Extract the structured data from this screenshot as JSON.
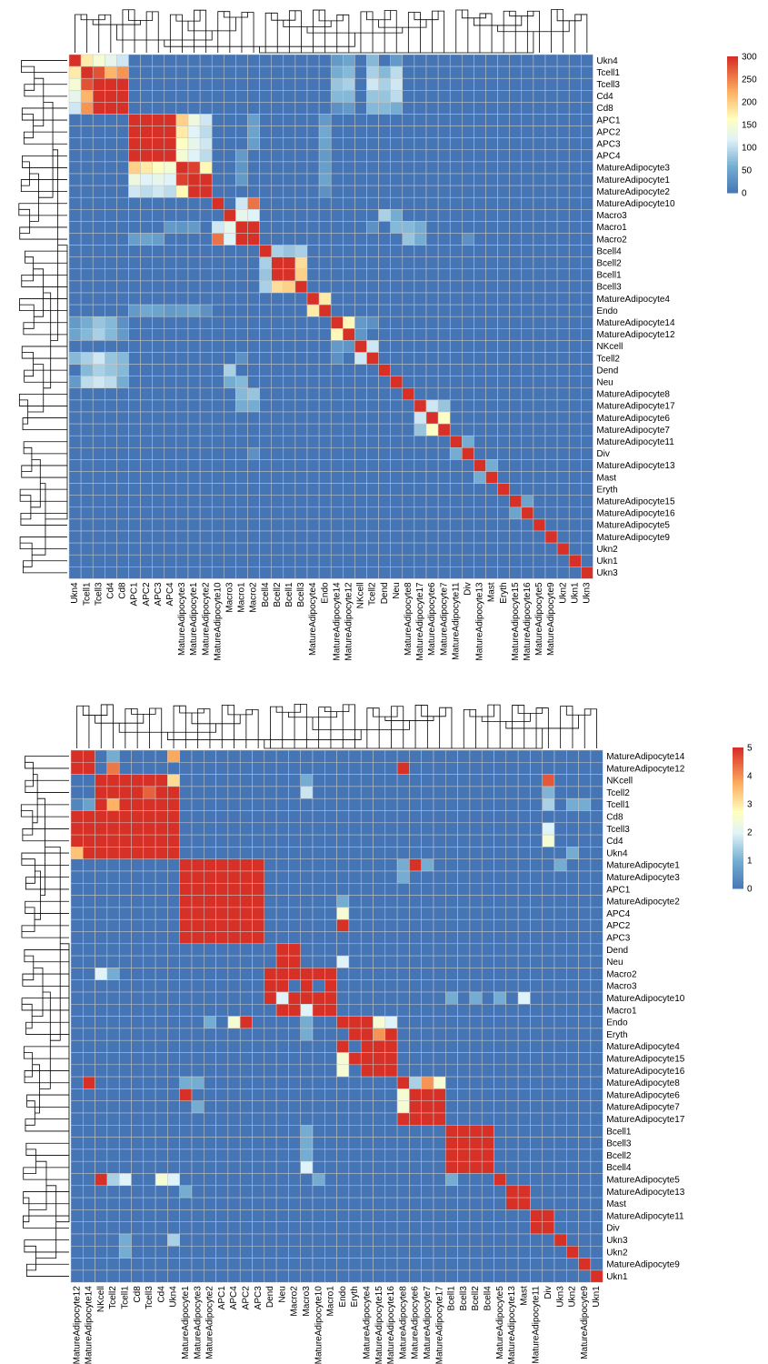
{
  "chart_data": [
    {
      "type": "heatmap",
      "title": "",
      "rows": [
        "Ukn4",
        "Tcell1",
        "Tcell3",
        "Cd4",
        "Cd8",
        "APC1",
        "APC2",
        "APC3",
        "APC4",
        "MatureAdipocyte3",
        "MatureAdipocyte1",
        "MatureAdipocyte2",
        "MatureAdipocyte10",
        "Macro3",
        "Macro1",
        "Macro2",
        "Bcell4",
        "Bcell2",
        "Bcell1",
        "Bcell3",
        "MatureAdipocyte4",
        "Endo",
        "MatureAdipocyte14",
        "MatureAdipocyte12",
        "NKcell",
        "Tcell2",
        "Dend",
        "Neu",
        "MatureAdipocyte8",
        "MatureAdipocyte17",
        "MatureAdipocyte6",
        "MatureAdipocyte7",
        "MatureAdipocyte11",
        "Div",
        "MatureAdipocyte13",
        "Mast",
        "Eryth",
        "MatureAdipocyte15",
        "MatureAdipocyte16",
        "MatureAdipocyte5",
        "MatureAdipocyte9",
        "Ukn2",
        "Ukn1",
        "Ukn3"
      ],
      "columns": [
        "Ukn4",
        "Tcell1",
        "Tcell3",
        "Cd4",
        "Cd8",
        "APC1",
        "APC2",
        "APC3",
        "APC4",
        "MatureAdipocyte3",
        "MatureAdipocyte1",
        "MatureAdipocyte2",
        "MatureAdipocyte10",
        "Macro3",
        "Macro1",
        "Macro2",
        "Bcell4",
        "Bcell2",
        "Bcell1",
        "Bcell3",
        "MatureAdipocyte4",
        "Endo",
        "MatureAdipocyte14",
        "MatureAdipocyte12",
        "NKcell",
        "Tcell2",
        "Dend",
        "Neu",
        "MatureAdipocyte8",
        "MatureAdipocyte17",
        "MatureAdipocyte6",
        "MatureAdipocyte7",
        "MatureAdipocyte11",
        "Div",
        "MatureAdipocyte13",
        "Mast",
        "Eryth",
        "MatureAdipocyte15",
        "MatureAdipocyte16",
        "MatureAdipocyte5",
        "MatureAdipocyte9",
        "Ukn2",
        "Ukn1",
        "Ukn3"
      ],
      "diagonal": 300,
      "off_diagonal": [
        [
          0,
          1,
          180
        ],
        [
          0,
          2,
          150
        ],
        [
          0,
          3,
          130
        ],
        [
          0,
          4,
          110
        ],
        [
          1,
          2,
          280
        ],
        [
          1,
          3,
          220
        ],
        [
          1,
          4,
          240
        ],
        [
          2,
          3,
          300
        ],
        [
          2,
          4,
          300
        ],
        [
          3,
          4,
          300
        ],
        [
          0,
          25,
          70
        ],
        [
          0,
          27,
          40
        ],
        [
          1,
          25,
          90
        ],
        [
          1,
          26,
          70
        ],
        [
          1,
          27,
          100
        ],
        [
          2,
          25,
          110
        ],
        [
          2,
          26,
          90
        ],
        [
          2,
          27,
          110
        ],
        [
          3,
          25,
          80
        ],
        [
          3,
          26,
          80
        ],
        [
          3,
          27,
          100
        ],
        [
          4,
          25,
          70
        ],
        [
          4,
          26,
          70
        ],
        [
          4,
          27,
          60
        ],
        [
          5,
          6,
          300
        ],
        [
          5,
          7,
          300
        ],
        [
          5,
          8,
          300
        ],
        [
          6,
          7,
          300
        ],
        [
          6,
          8,
          300
        ],
        [
          7,
          8,
          300
        ],
        [
          5,
          9,
          200
        ],
        [
          5,
          10,
          140
        ],
        [
          5,
          11,
          110
        ],
        [
          6,
          9,
          180
        ],
        [
          6,
          10,
          120
        ],
        [
          6,
          11,
          100
        ],
        [
          7,
          9,
          160
        ],
        [
          7,
          10,
          130
        ],
        [
          7,
          11,
          110
        ],
        [
          8,
          9,
          150
        ],
        [
          8,
          10,
          120
        ],
        [
          8,
          11,
          100
        ],
        [
          9,
          10,
          290
        ],
        [
          9,
          11,
          170
        ],
        [
          10,
          11,
          300
        ],
        [
          5,
          15,
          45
        ],
        [
          6,
          15,
          50
        ],
        [
          7,
          15,
          45
        ],
        [
          5,
          21,
          40
        ],
        [
          6,
          21,
          55
        ],
        [
          7,
          21,
          50
        ],
        [
          13,
          14,
          130
        ],
        [
          13,
          15,
          120
        ],
        [
          14,
          15,
          300
        ],
        [
          12,
          14,
          110
        ],
        [
          12,
          15,
          260
        ],
        [
          8,
          14,
          40
        ],
        [
          9,
          14,
          35
        ],
        [
          10,
          14,
          40
        ],
        [
          14,
          25,
          30
        ],
        [
          14,
          28,
          70
        ],
        [
          14,
          29,
          60
        ],
        [
          15,
          28,
          80
        ],
        [
          15,
          29,
          60
        ],
        [
          15,
          33,
          30
        ],
        [
          16,
          17,
          90
        ],
        [
          16,
          18,
          80
        ],
        [
          16,
          19,
          90
        ],
        [
          17,
          18,
          300
        ],
        [
          17,
          19,
          190
        ],
        [
          18,
          19,
          200
        ],
        [
          20,
          21,
          180
        ],
        [
          8,
          21,
          40
        ],
        [
          9,
          21,
          45
        ],
        [
          10,
          21,
          50
        ],
        [
          11,
          21,
          30
        ],
        [
          22,
          23,
          170
        ],
        [
          22,
          24,
          40
        ],
        [
          22,
          25,
          30
        ],
        [
          23,
          24,
          35
        ],
        [
          24,
          25,
          110
        ],
        [
          0,
          22,
          40
        ],
        [
          0,
          23,
          50
        ],
        [
          1,
          22,
          60
        ],
        [
          1,
          23,
          70
        ],
        [
          2,
          22,
          80
        ],
        [
          2,
          23,
          90
        ],
        [
          3,
          22,
          70
        ],
        [
          3,
          23,
          70
        ],
        [
          4,
          22,
          30
        ],
        [
          4,
          23,
          40
        ],
        [
          13,
          26,
          90
        ],
        [
          13,
          27,
          60
        ],
        [
          14,
          27,
          70
        ],
        [
          29,
          30,
          110
        ],
        [
          29,
          31,
          80
        ],
        [
          30,
          31,
          160
        ],
        [
          32,
          33,
          60
        ],
        [
          34,
          35,
          60
        ],
        [
          37,
          38,
          50
        ]
      ],
      "colorbar": {
        "min": 0,
        "max": 300,
        "ticks": [
          0,
          50,
          100,
          150,
          200,
          250,
          300
        ]
      }
    },
    {
      "type": "heatmap",
      "title": "",
      "rows": [
        "MatureAdipocyte14",
        "MatureAdipocyte12",
        "NKcell",
        "Tcell2",
        "Tcell1",
        "Cd8",
        "Tcell3",
        "Cd4",
        "Ukn4",
        "MatureAdipocyte1",
        "MatureAdipocyte3",
        "APC1",
        "MatureAdipocyte2",
        "APC4",
        "APC2",
        "APC3",
        "Dend",
        "Neu",
        "Macro2",
        "Macro3",
        "MatureAdipocyte10",
        "Macro1",
        "Endo",
        "Eryth",
        "MatureAdipocyte4",
        "MatureAdipocyte15",
        "MatureAdipocyte16",
        "MatureAdipocyte8",
        "MatureAdipocyte6",
        "MatureAdipocyte7",
        "MatureAdipocyte17",
        "Bcell1",
        "Bcell3",
        "Bcell2",
        "Bcell4",
        "MatureAdipocyte5",
        "MatureAdipocyte13",
        "Mast",
        "MatureAdipocyte11",
        "Div",
        "Ukn3",
        "Ukn2",
        "MatureAdipocyte9",
        "Ukn1"
      ],
      "columns": [
        "MatureAdipocyte12",
        "MatureAdipocyte14",
        "NKcell",
        "Tcell2",
        "Tcell1",
        "Cd8",
        "Tcell3",
        "Cd4",
        "Ukn4",
        "MatureAdipocyte1",
        "MatureAdipocyte3",
        "MatureAdipocyte2",
        "APC1",
        "APC4",
        "APC2",
        "APC3",
        "Dend",
        "Neu",
        "Macro2",
        "Macro3",
        "MatureAdipocyte10",
        "Macro1",
        "Endo",
        "Eryth",
        "MatureAdipocyte4",
        "MatureAdipocyte15",
        "MatureAdipocyte16",
        "MatureAdipocyte8",
        "MatureAdipocyte6",
        "MatureAdipocyte7",
        "MatureAdipocyte17",
        "Bcell1",
        "Bcell3",
        "Bcell2",
        "Bcell4",
        "MatureAdipocyte5",
        "MatureAdipocyte13",
        "Mast",
        "MatureAdipocyte11",
        "Div",
        "Ukn3",
        "Ukn2",
        "MatureAdipocyte9",
        "Ukn1"
      ],
      "block_value": 5,
      "blocks": [
        [
          0,
          1,
          0,
          1
        ],
        [
          2,
          8,
          2,
          8
        ],
        [
          9,
          15,
          9,
          15
        ],
        [
          16,
          17,
          17,
          18
        ],
        [
          18,
          21,
          16,
          21
        ],
        [
          22,
          26,
          22,
          26
        ],
        [
          27,
          30,
          27,
          30
        ],
        [
          31,
          34,
          31,
          34
        ],
        [
          35,
          35,
          35,
          35
        ],
        [
          36,
          37,
          36,
          37
        ],
        [
          38,
          39,
          38,
          39
        ],
        [
          40,
          40,
          40,
          40
        ],
        [
          41,
          41,
          41,
          41
        ],
        [
          42,
          42,
          42,
          42
        ],
        [
          43,
          43,
          43,
          43
        ]
      ],
      "cells": [
        [
          0,
          2,
          0
        ],
        [
          0,
          3,
          1
        ],
        [
          0,
          8,
          3.8
        ],
        [
          1,
          3,
          4.3
        ],
        [
          1,
          27,
          5
        ],
        [
          2,
          0,
          0
        ],
        [
          2,
          1,
          0
        ],
        [
          3,
          0,
          0
        ],
        [
          3,
          1,
          0
        ],
        [
          4,
          0,
          0.3
        ],
        [
          4,
          1,
          0.8
        ],
        [
          5,
          0,
          5
        ],
        [
          5,
          1,
          5
        ],
        [
          6,
          0,
          5
        ],
        [
          6,
          1,
          5
        ],
        [
          7,
          0,
          5
        ],
        [
          7,
          1,
          5
        ],
        [
          8,
          0,
          3.5
        ],
        [
          8,
          1,
          5
        ],
        [
          3,
          6,
          4.5
        ],
        [
          4,
          3,
          3.7
        ],
        [
          2,
          8,
          3.2
        ],
        [
          2,
          19,
          1
        ],
        [
          3,
          19,
          1.8
        ],
        [
          2,
          39,
          4.6
        ],
        [
          3,
          39,
          1.1
        ],
        [
          4,
          39,
          1.5
        ],
        [
          4,
          41,
          1
        ],
        [
          4,
          42,
          1
        ],
        [
          6,
          39,
          2
        ],
        [
          7,
          39,
          2.5
        ],
        [
          8,
          41,
          1
        ],
        [
          9,
          27,
          1
        ],
        [
          9,
          28,
          5
        ],
        [
          9,
          29,
          1
        ],
        [
          10,
          27,
          1
        ],
        [
          9,
          40,
          1
        ],
        [
          12,
          22,
          1
        ],
        [
          13,
          22,
          2.5
        ],
        [
          14,
          22,
          5
        ],
        [
          16,
          16,
          0
        ],
        [
          17,
          22,
          2
        ],
        [
          18,
          2,
          2
        ],
        [
          18,
          3,
          1
        ],
        [
          19,
          20,
          0
        ],
        [
          19,
          18,
          0
        ],
        [
          20,
          20,
          5
        ],
        [
          21,
          16,
          0
        ],
        [
          20,
          31,
          1
        ],
        [
          20,
          33,
          1
        ],
        [
          20,
          35,
          1
        ],
        [
          20,
          37,
          2
        ],
        [
          20,
          17,
          2
        ],
        [
          22,
          11,
          1
        ],
        [
          22,
          13,
          2.5
        ],
        [
          22,
          14,
          5
        ],
        [
          22,
          24,
          5
        ],
        [
          22,
          25,
          2.5
        ],
        [
          22,
          26,
          2
        ],
        [
          23,
          22,
          0
        ],
        [
          23,
          23,
          5
        ],
        [
          23,
          25,
          4
        ],
        [
          24,
          22,
          5
        ],
        [
          24,
          23,
          0
        ],
        [
          25,
          22,
          2.5
        ],
        [
          26,
          22,
          2.5
        ],
        [
          26,
          23,
          0
        ],
        [
          21,
          19,
          2
        ],
        [
          22,
          19,
          1
        ],
        [
          23,
          19,
          1
        ],
        [
          27,
          1,
          5
        ],
        [
          27,
          9,
          1
        ],
        [
          27,
          10,
          1
        ],
        [
          27,
          28,
          1.5
        ],
        [
          27,
          29,
          4
        ],
        [
          27,
          30,
          2.5
        ],
        [
          28,
          9,
          5
        ],
        [
          28,
          27,
          2.5
        ],
        [
          29,
          10,
          1
        ],
        [
          29,
          27,
          2.5
        ],
        [
          31,
          19,
          1
        ],
        [
          32,
          19,
          1
        ],
        [
          33,
          19,
          1
        ],
        [
          34,
          19,
          2
        ],
        [
          35,
          31,
          1
        ],
        [
          35,
          35,
          5
        ],
        [
          35,
          2,
          5
        ],
        [
          35,
          3,
          1.5
        ],
        [
          35,
          4,
          2
        ],
        [
          35,
          7,
          2.5
        ],
        [
          35,
          8,
          2
        ],
        [
          35,
          20,
          1
        ],
        [
          36,
          9,
          1
        ],
        [
          40,
          4,
          1
        ],
        [
          41,
          4,
          1
        ],
        [
          40,
          8,
          1.5
        ]
      ],
      "colorbar": {
        "min": 0,
        "max": 5,
        "ticks": [
          0,
          1,
          2,
          3,
          4,
          5
        ]
      }
    }
  ]
}
